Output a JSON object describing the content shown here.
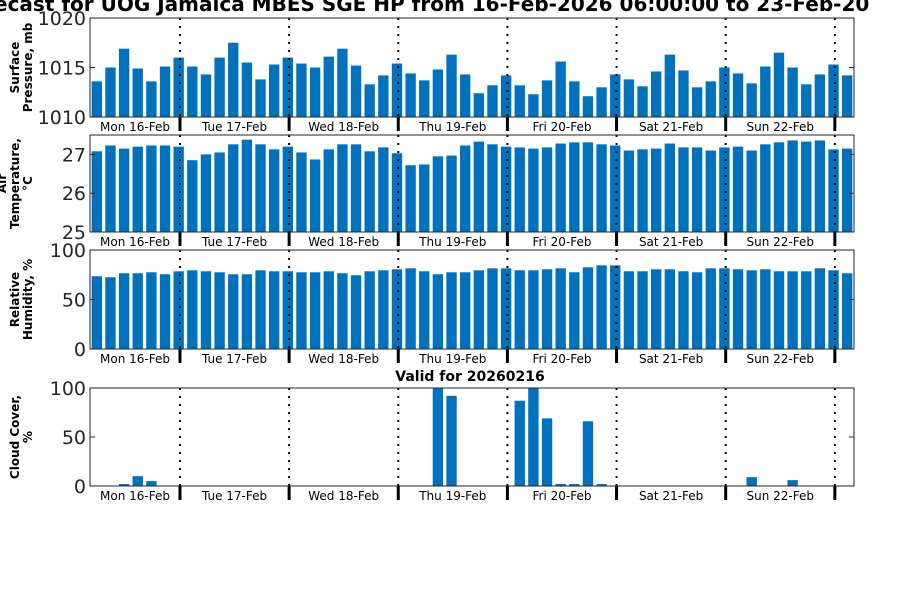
{
  "title": "ecast for UOG Jamaica MBES SGE HP from 16-Feb-2026 06:00:00 to 23-Feb-20",
  "subtitle": "Valid for 20260216",
  "bar_color": "#0072bd",
  "chart_data": [
    {
      "type": "bar",
      "ylabel": "Surface Pressure, mb",
      "ylim": [
        1010,
        1020
      ],
      "yticks": [
        "1010",
        "1015",
        "1020"
      ],
      "day_labels": [
        "Mon 16-Feb",
        "Tue 17-Feb",
        "Wed 18-Feb",
        "Thu 19-Feb",
        "Fri 20-Feb",
        "Sat 21-Feb",
        "Sun 22-Feb"
      ],
      "values": [
        1013.6,
        1015.0,
        1016.9,
        1014.9,
        1013.6,
        1015.1,
        1016.0,
        1015.1,
        1014.3,
        1016.0,
        1017.5,
        1015.5,
        1013.8,
        1015.3,
        1016.0,
        1015.4,
        1015.0,
        1016.1,
        1016.9,
        1015.2,
        1013.3,
        1014.2,
        1015.4,
        1014.4,
        1013.7,
        1014.8,
        1016.3,
        1014.3,
        1012.4,
        1013.2,
        1014.2,
        1013.2,
        1012.3,
        1013.7,
        1015.6,
        1013.6,
        1012.1,
        1013.0,
        1014.3,
        1013.8,
        1013.1,
        1014.6,
        1016.3,
        1014.7,
        1013.0,
        1013.6,
        1015.0,
        1014.4,
        1013.4,
        1015.1,
        1016.5,
        1015.0,
        1013.3,
        1014.3,
        1015.3,
        1014.2
      ]
    },
    {
      "type": "bar",
      "ylabel": "Air Temperature, °C",
      "ylim": [
        25,
        27.5
      ],
      "yticks": [
        "25",
        "26",
        "27"
      ],
      "day_labels": [
        "Mon 16-Feb",
        "Tue 17-Feb",
        "Wed 18-Feb",
        "Thu 19-Feb",
        "Fri 20-Feb",
        "Sat 21-Feb",
        "Sun 22-Feb"
      ],
      "values": [
        27.08,
        27.23,
        27.15,
        27.2,
        27.23,
        27.23,
        27.2,
        26.85,
        27.0,
        27.05,
        27.26,
        27.38,
        27.26,
        27.13,
        27.2,
        27.05,
        26.87,
        27.13,
        27.26,
        27.26,
        27.08,
        27.18,
        27.03,
        26.72,
        26.74,
        26.95,
        26.97,
        27.23,
        27.33,
        27.26,
        27.2,
        27.18,
        27.15,
        27.18,
        27.28,
        27.31,
        27.31,
        27.26,
        27.23,
        27.1,
        27.13,
        27.15,
        27.28,
        27.18,
        27.18,
        27.1,
        27.18,
        27.2,
        27.1,
        27.26,
        27.31,
        27.36,
        27.33,
        27.36,
        27.13,
        27.15
      ]
    },
    {
      "type": "bar",
      "ylabel": "Relative Humidity, %",
      "ylim": [
        0,
        100
      ],
      "yticks": [
        "0",
        "50",
        "100"
      ],
      "day_labels": [
        "Mon 16-Feb",
        "Tue 17-Feb",
        "Wed 18-Feb",
        "Thu 19-Feb",
        "Fri 20-Feb",
        "Sat 21-Feb",
        "Sun 22-Feb"
      ],
      "values": [
        73.5,
        72.5,
        76.5,
        76.5,
        77.5,
        75.5,
        78.5,
        79.5,
        78.5,
        77.5,
        75.5,
        75.5,
        79.5,
        78.5,
        78.5,
        77.5,
        77.5,
        78.5,
        76.5,
        74.5,
        78.5,
        79.5,
        80.5,
        81.5,
        78.5,
        75.5,
        77.5,
        77.5,
        79.5,
        81.5,
        81.5,
        79.5,
        79.5,
        80.5,
        81.5,
        77.5,
        82.5,
        84.5,
        84.5,
        78.5,
        78.5,
        80.5,
        80.5,
        78.5,
        77.5,
        81.5,
        81.5,
        80.5,
        79.5,
        80.5,
        78.5,
        78.5,
        78.5,
        81.5,
        79.5,
        76.5
      ]
    },
    {
      "type": "bar",
      "ylabel": "Cloud Cover, %",
      "ylim": [
        0,
        100
      ],
      "yticks": [
        "0",
        "50",
        "100"
      ],
      "day_labels": [
        "Mon 16-Feb",
        "Tue 17-Feb",
        "Wed 18-Feb",
        "Thu 19-Feb",
        "Fri 20-Feb",
        "Sat 21-Feb",
        "Sun 22-Feb"
      ],
      "values": [
        0,
        0,
        2,
        10,
        5,
        0,
        0,
        0,
        0,
        0,
        0,
        0,
        0,
        0,
        0,
        0,
        0,
        0,
        0,
        0,
        0,
        0,
        0,
        0,
        0,
        100,
        92,
        0,
        0,
        0,
        0,
        87,
        100,
        69,
        2,
        2,
        66,
        2,
        0,
        0,
        0,
        0,
        0,
        0,
        0,
        0,
        0,
        0,
        9,
        0,
        0,
        6,
        0,
        0,
        0,
        0
      ]
    }
  ]
}
